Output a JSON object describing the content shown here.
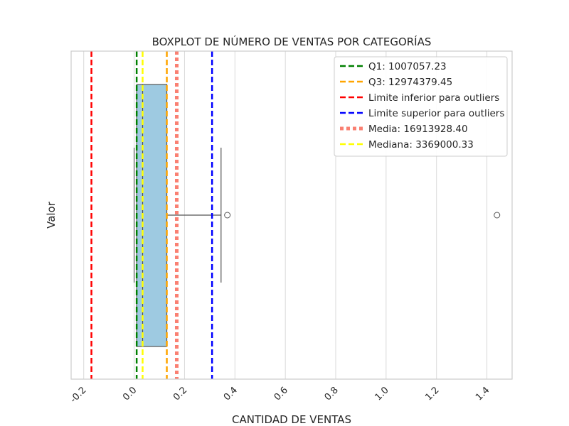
{
  "chart_data": {
    "type": "boxplot",
    "title": "BOXPLOT DE NÚMERO DE VENTAS POR CATEGORÍAS",
    "xlabel": "CANTIDAD DE VENTAS",
    "ylabel": "Valor",
    "x_scale_note": "values in units of 1e8 (ticks shown as fractions)",
    "xlim": [
      -0.25,
      1.5
    ],
    "xticks": [
      "-0.2",
      "0.0",
      "0.2",
      "0.4",
      "0.6",
      "0.8",
      "1.0",
      "1.2",
      "1.4"
    ],
    "xtick_values": [
      -0.2,
      0.0,
      0.2,
      0.4,
      0.6,
      0.8,
      1.0,
      1.2,
      1.4
    ],
    "grid": true,
    "legend_placement": "top-right",
    "box": {
      "q1": 0.01007,
      "q3": 0.12974,
      "median": 0.03369,
      "whisker_low": 0.0,
      "whisker_high": 0.345,
      "outliers": [
        0.37,
        1.44
      ],
      "color": "#9ecae1"
    },
    "reference_lines": [
      {
        "label": "Q1: 1007057.23",
        "value": 0.01007,
        "color": "#008000",
        "style": "dashed"
      },
      {
        "label": "Q3: 12974379.45",
        "value": 0.12974,
        "color": "#ffa500",
        "style": "dashed"
      },
      {
        "label": "Limite inferior para outliers",
        "value": -0.1694,
        "color": "#ff0000",
        "style": "dashed"
      },
      {
        "label": "Limite superior para outliers",
        "value": 0.3093,
        "color": "#0000ff",
        "style": "dashed"
      },
      {
        "label": "Media: 16913928.40",
        "value": 0.16914,
        "color": "#fa8072",
        "style": "dotted"
      },
      {
        "label": "Mediana: 3369000.33",
        "value": 0.03369,
        "color": "#ffff00",
        "style": "dashed"
      }
    ]
  }
}
